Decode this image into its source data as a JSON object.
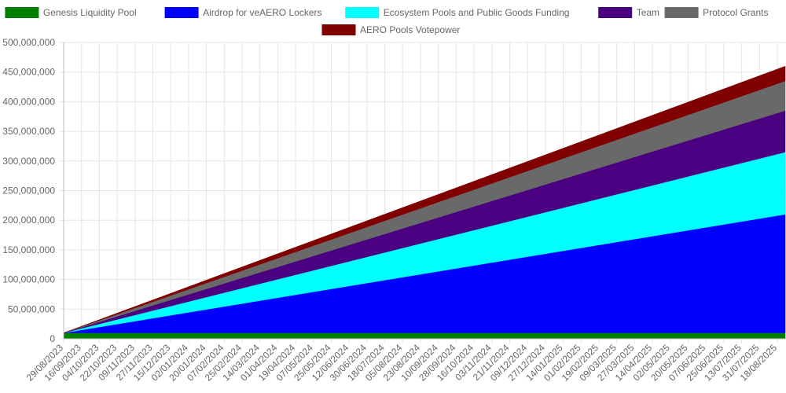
{
  "chart_data": {
    "type": "area",
    "stacked": true,
    "title": "",
    "xlabel": "",
    "ylabel": "",
    "ylim": [
      0,
      500000000
    ],
    "y_ticks": [
      0,
      50000000,
      100000000,
      150000000,
      200000000,
      250000000,
      300000000,
      350000000,
      400000000,
      450000000,
      500000000
    ],
    "y_tick_labels": [
      "0",
      "50,000,000",
      "100,000,000",
      "150,000,000",
      "200,000,000",
      "250,000,000",
      "300,000,000",
      "350,000,000",
      "400,000,000",
      "450,000,000",
      "500,000,000"
    ],
    "x_tick_labels": [
      "29/08/2023",
      "16/09/2023",
      "04/10/2023",
      "22/10/2023",
      "09/11/2023",
      "27/11/2023",
      "15/12/2023",
      "02/01/2024",
      "20/01/2024",
      "07/02/2024",
      "25/02/2024",
      "14/03/2024",
      "01/04/2024",
      "19/04/2024",
      "07/05/2024",
      "25/05/2024",
      "12/06/2024",
      "30/06/2024",
      "18/07/2024",
      "05/08/2024",
      "23/08/2024",
      "10/09/2024",
      "28/09/2024",
      "16/10/2024",
      "03/11/2024",
      "21/11/2024",
      "09/12/2024",
      "27/12/2024",
      "14/01/2025",
      "01/02/2025",
      "19/02/2025",
      "09/03/2025",
      "27/03/2025",
      "14/04/2025",
      "02/05/2025",
      "20/05/2025",
      "07/06/2025",
      "25/06/2025",
      "13/07/2025",
      "31/07/2025",
      "18/08/2025"
    ],
    "grid": true,
    "legend_position": "top",
    "x": [
      "29/08/2023",
      "18/08/2025"
    ],
    "series": [
      {
        "name": "Genesis Liquidity Pool",
        "color": "#008000",
        "values": [
          10000000,
          10000000
        ]
      },
      {
        "name": "Airdrop for veAERO Lockers",
        "color": "#0000ff",
        "values": [
          0,
          200000000
        ]
      },
      {
        "name": "Ecosystem Pools and Public Goods Funding",
        "color": "#00ffff",
        "values": [
          0,
          105000000
        ]
      },
      {
        "name": "Team",
        "color": "#4b0082",
        "values": [
          0,
          70000000
        ]
      },
      {
        "name": "Protocol Grants",
        "color": "#696969",
        "values": [
          0,
          50000000
        ]
      },
      {
        "name": "AERO Pools Votepower",
        "color": "#800000",
        "values": [
          0,
          25000000
        ]
      }
    ]
  }
}
